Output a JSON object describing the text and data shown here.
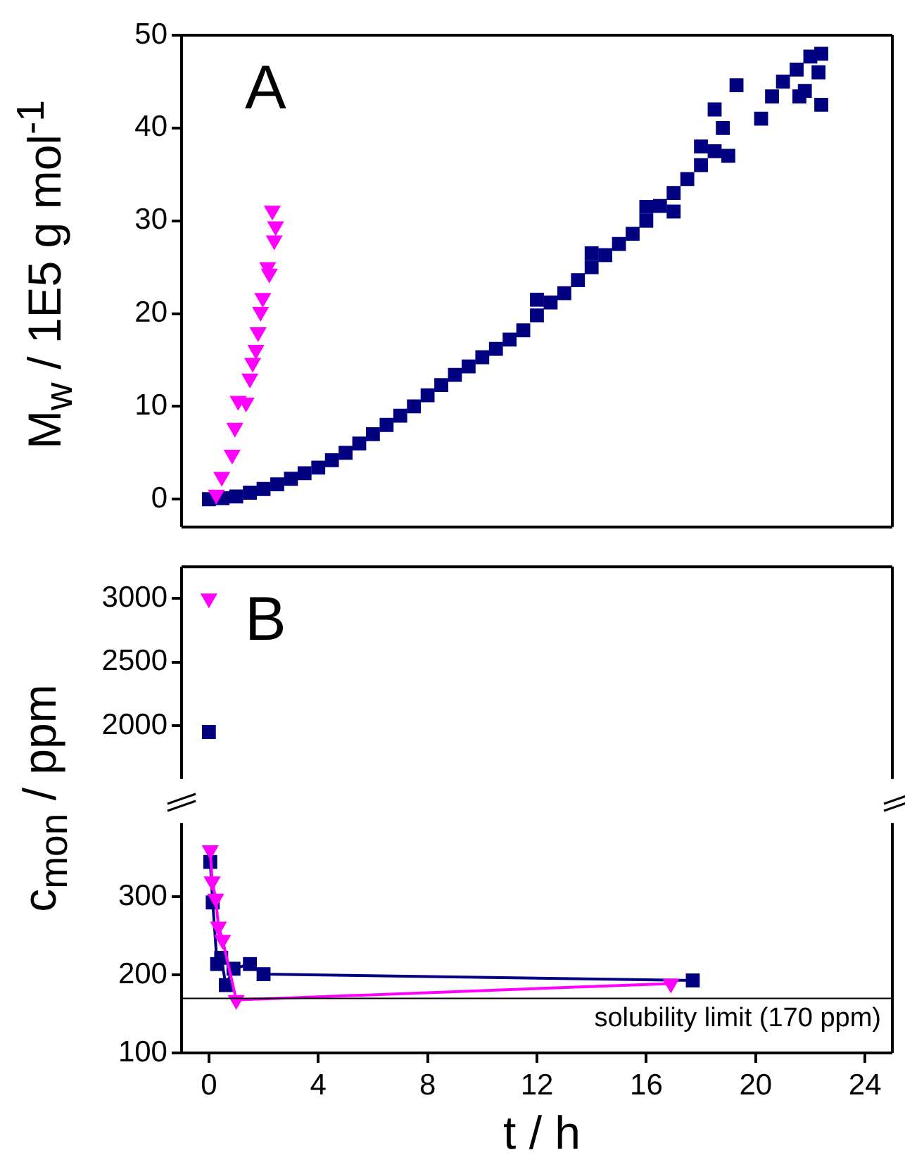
{
  "chart_data": [
    {
      "type": "scatter",
      "ylabel": "M$_{w}$ / 1E5 g mol$^{-1}$",
      "annotations": [
        "A"
      ],
      "xlim": [
        -1,
        25
      ],
      "xticks": [
        0,
        4,
        8,
        12,
        16,
        20,
        24
      ],
      "ylim": [
        -3,
        50
      ],
      "yticks": [
        0,
        10,
        20,
        30,
        40,
        50
      ],
      "tick_labels": "y",
      "series": [
        {
          "color": "#000080",
          "marker": "square",
          "x": [
            0,
            0.5,
            1,
            1.5,
            2,
            2.5,
            3,
            3.5,
            4,
            4.5,
            5,
            5.5,
            6,
            6.5,
            7,
            7.5,
            8,
            8.5,
            9,
            9.5,
            10,
            10.5,
            11,
            11.5,
            12,
            12,
            12.5,
            13,
            13.5,
            14,
            14,
            14.5,
            15,
            15.5,
            16,
            16,
            16.5,
            17,
            17,
            17.5,
            18,
            18,
            18.5,
            18.8,
            18.5,
            19.3,
            19,
            20.2,
            20.6,
            21,
            21.5,
            21.6,
            22,
            22.4,
            22.4,
            21.8,
            22.3
          ],
          "values": [
            0,
            0.1,
            0.3,
            0.7,
            1.1,
            1.6,
            2.2,
            2.8,
            3.4,
            4.2,
            5,
            6,
            7,
            8,
            9,
            10,
            11.2,
            12.3,
            13.4,
            14.3,
            15.3,
            16.2,
            17.2,
            18.2,
            19.8,
            21.5,
            21.2,
            22.2,
            23.6,
            25,
            26.5,
            26.3,
            27.5,
            28.6,
            30,
            31.5,
            31.6,
            33,
            31,
            34.5,
            36,
            38,
            37.5,
            40,
            42,
            44.6,
            37,
            41,
            43.4,
            45,
            46.3,
            43.4,
            47.7,
            48,
            42.5,
            44,
            46
          ]
        },
        {
          "color": "#ff00ff",
          "marker": "triangle",
          "x": [
            0.27,
            0.47,
            0.85,
            0.95,
            1.07,
            1.36,
            1.5,
            1.6,
            1.72,
            1.8,
            1.89,
            1.97,
            2.21,
            2.15,
            2.39,
            2.44,
            2.32
          ],
          "values": [
            0.5,
            2.4,
            4.8,
            7.7,
            10.6,
            10.4,
            13,
            14.7,
            16.1,
            18,
            20.2,
            21.7,
            24.3,
            25,
            27.9,
            29.4,
            31.1
          ]
        }
      ]
    },
    {
      "type": "line",
      "ylabel": "c$_{mon}$ / ppm",
      "annotations": [
        "B"
      ],
      "xlim": [
        -1,
        25
      ],
      "xticks": [
        0,
        4,
        8,
        12,
        16,
        20,
        24
      ],
      "ylim": [
        1580,
        3250
      ],
      "yticks": [
        2000,
        2500,
        3000
      ],
      "tick_labels": "y",
      "series": [
        {
          "color": "#000080",
          "marker": "square",
          "x": [
            0
          ],
          "values": [
            1950
          ]
        },
        {
          "color": "#ff00ff",
          "marker": "triangle",
          "x": [
            0
          ],
          "values": [
            3000
          ]
        }
      ]
    },
    {
      "type": "line",
      "xlabel": "t / h",
      "xlim": [
        -1,
        25
      ],
      "xticks": [
        0,
        4,
        8,
        12,
        16,
        20,
        24
      ],
      "ylim": [
        100,
        395
      ],
      "yticks": [
        100,
        200,
        300
      ],
      "ref_lines": [
        {
          "axis": "y",
          "value": 170,
          "label": "solubility limit (170 ppm)",
          "color": "#000000"
        }
      ],
      "series": [
        {
          "color": "#000080",
          "marker": "square",
          "x": [
            0.05,
            0.14,
            0.3,
            0.45,
            0.62,
            0.9,
            1.5,
            2,
            17.7
          ],
          "values": [
            345,
            293,
            214,
            222,
            187,
            208,
            214,
            201,
            193
          ]
        },
        {
          "color": "#ff00ff",
          "marker": "triangle",
          "x": [
            0.05,
            0.12,
            0.25,
            0.35,
            0.5,
            1,
            16.9
          ],
          "values": [
            360,
            320,
            298,
            262,
            245,
            168,
            189
          ]
        }
      ]
    }
  ]
}
